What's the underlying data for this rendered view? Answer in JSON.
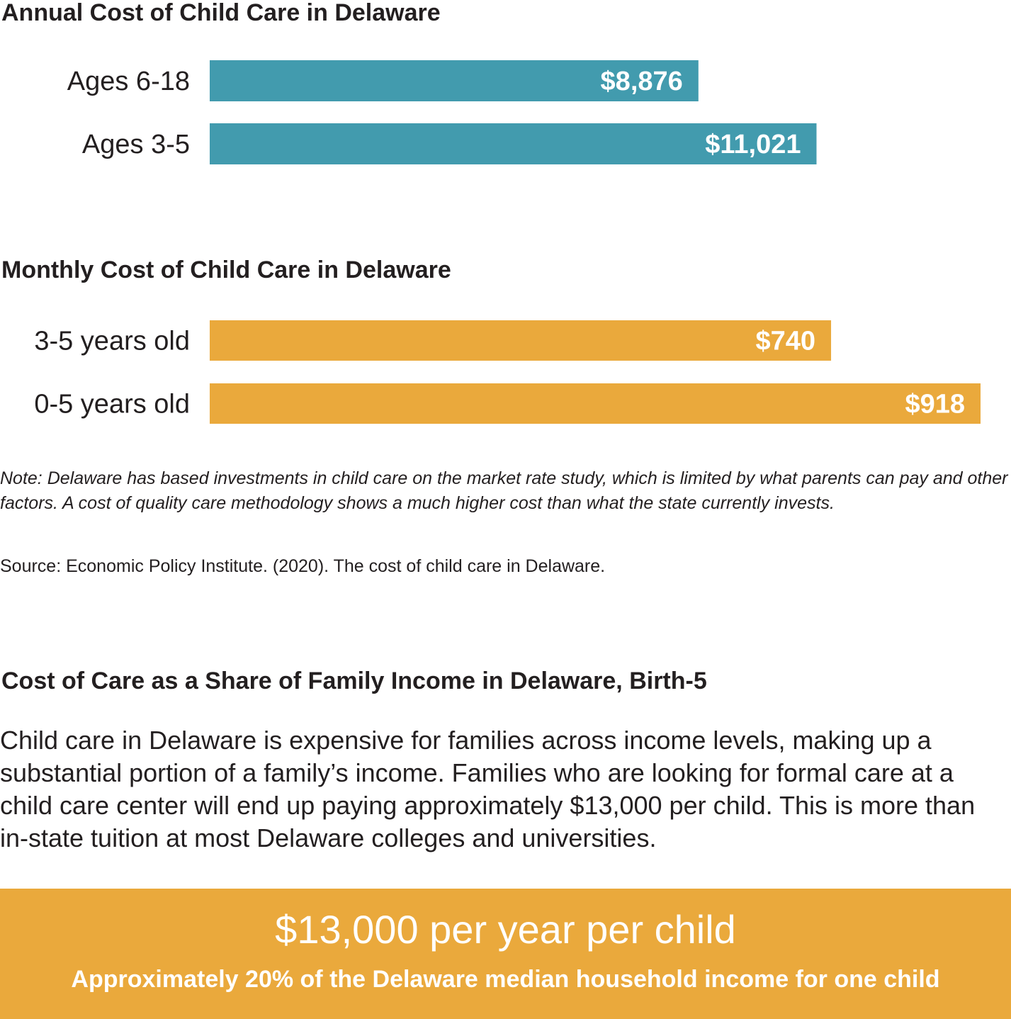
{
  "colors": {
    "annual_bar": "#429bae",
    "monthly_bar": "#eaa93c",
    "highlight_bg": "#eaa93c",
    "text": "#231f20",
    "bar_label": "#ffffff"
  },
  "chart_data": [
    {
      "type": "bar",
      "orientation": "horizontal",
      "title": "Annual Cost of Child Care in Delaware",
      "categories": [
        "Ages 6-18",
        "Ages 3-5"
      ],
      "values": [
        8876,
        11021
      ],
      "value_labels": [
        "$8,876",
        "$11,021"
      ],
      "xlim": [
        0,
        14000
      ],
      "grid": false,
      "legend": "none",
      "xlabel": "",
      "ylabel": ""
    },
    {
      "type": "bar",
      "orientation": "horizontal",
      "title": "Monthly Cost of Child Care in Delaware",
      "categories": [
        "3-5 years old",
        "0-5 years old"
      ],
      "values": [
        740,
        918
      ],
      "value_labels": [
        "$740",
        "$918"
      ],
      "xlim": [
        0,
        918
      ],
      "grid": false,
      "legend": "none",
      "xlabel": "",
      "ylabel": ""
    }
  ],
  "note": "Note: Delaware has based investments in child care on the market rate study, which is limited by what parents can pay and other factors. A cost of quality care methodology shows a much higher cost than what the state currently invests.",
  "source": "Source: Economic Policy Institute. (2020). The cost of child care in Delaware.",
  "section3": {
    "title": "Cost of Care as a Share of Family Income in Delaware, Birth-5",
    "body": "Child care in Delaware is expensive for families across income levels, making up a substantial portion of a family’s income. Families who are looking for formal care at a child care center will end up paying approximately $13,000 per child. This is more than in-state tuition at most Delaware colleges and universities.",
    "highlight_main": "$13,000 per year per child",
    "highlight_sub": "Approximately 20% of the Delaware median household income for one child"
  }
}
